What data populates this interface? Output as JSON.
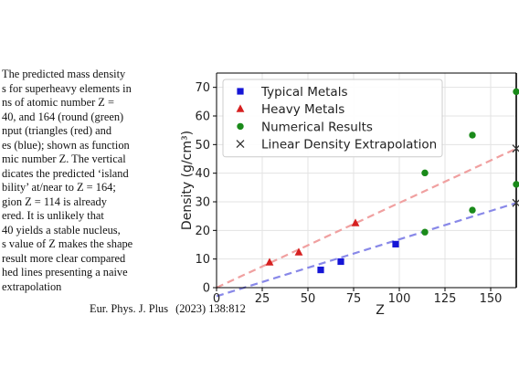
{
  "caption_lines": [
    "The predicted mass density",
    "s for superheavy elements in",
    "ns of atomic number Z =",
    "40, and 164 (round (green)",
    "nput (triangles (red) and",
    "es (blue); shown as function",
    "mic number Z. The vertical",
    "dicates the predicted ‘island",
    "bility’ at/near to Z = 164;",
    "gion Z = 114 is already",
    "ered. It is unlikely that",
    "40 yields a stable nucleus,",
    "s value of Z makes the shape",
    "result more clear compared",
    "hed lines presenting a naive",
    "extrapolation"
  ],
  "journal": {
    "name": "Eur. Phys. J. Plus",
    "ref": "(2023) 138:812"
  },
  "chart_data": {
    "type": "scatter",
    "xlabel": "Z",
    "ylabel": "Density (g/cm³)",
    "xlim": [
      0,
      164
    ],
    "ylim": [
      0,
      75
    ],
    "xticks": [
      0,
      25,
      50,
      75,
      100,
      125,
      150
    ],
    "yticks": [
      0,
      10,
      20,
      30,
      40,
      50,
      60,
      70
    ],
    "grid": true,
    "legend_position": "top-left",
    "vertical_line_x": 164,
    "series": [
      {
        "name": "Typical Metals",
        "marker": "square",
        "color": "#1515d6",
        "x": [
          57,
          68,
          98
        ],
        "y": [
          6.2,
          9.1,
          15.2
        ]
      },
      {
        "name": "Heavy Metals",
        "marker": "triangle",
        "color": "#d62020",
        "x": [
          29,
          45,
          76
        ],
        "y": [
          8.9,
          12.4,
          22.6
        ]
      },
      {
        "name": "Numerical Results",
        "marker": "circle",
        "color": "#1a8a1a",
        "x": [
          114,
          114,
          140,
          140,
          164,
          164
        ],
        "y": [
          19.4,
          40.1,
          27.1,
          53.3,
          36.1,
          68.5
        ]
      },
      {
        "name": "Linear Density Extrapolation",
        "marker": "x",
        "color": "#333333",
        "x": [
          164,
          164
        ],
        "y": [
          29.6,
          48.6
        ]
      }
    ],
    "trend_lines": [
      {
        "color": "#8888e8",
        "x": [
          0,
          164
        ],
        "y": [
          -3.0,
          29.6
        ]
      },
      {
        "color": "#f0a0a0",
        "x": [
          0,
          164
        ],
        "y": [
          0.0,
          48.6
        ]
      }
    ]
  }
}
